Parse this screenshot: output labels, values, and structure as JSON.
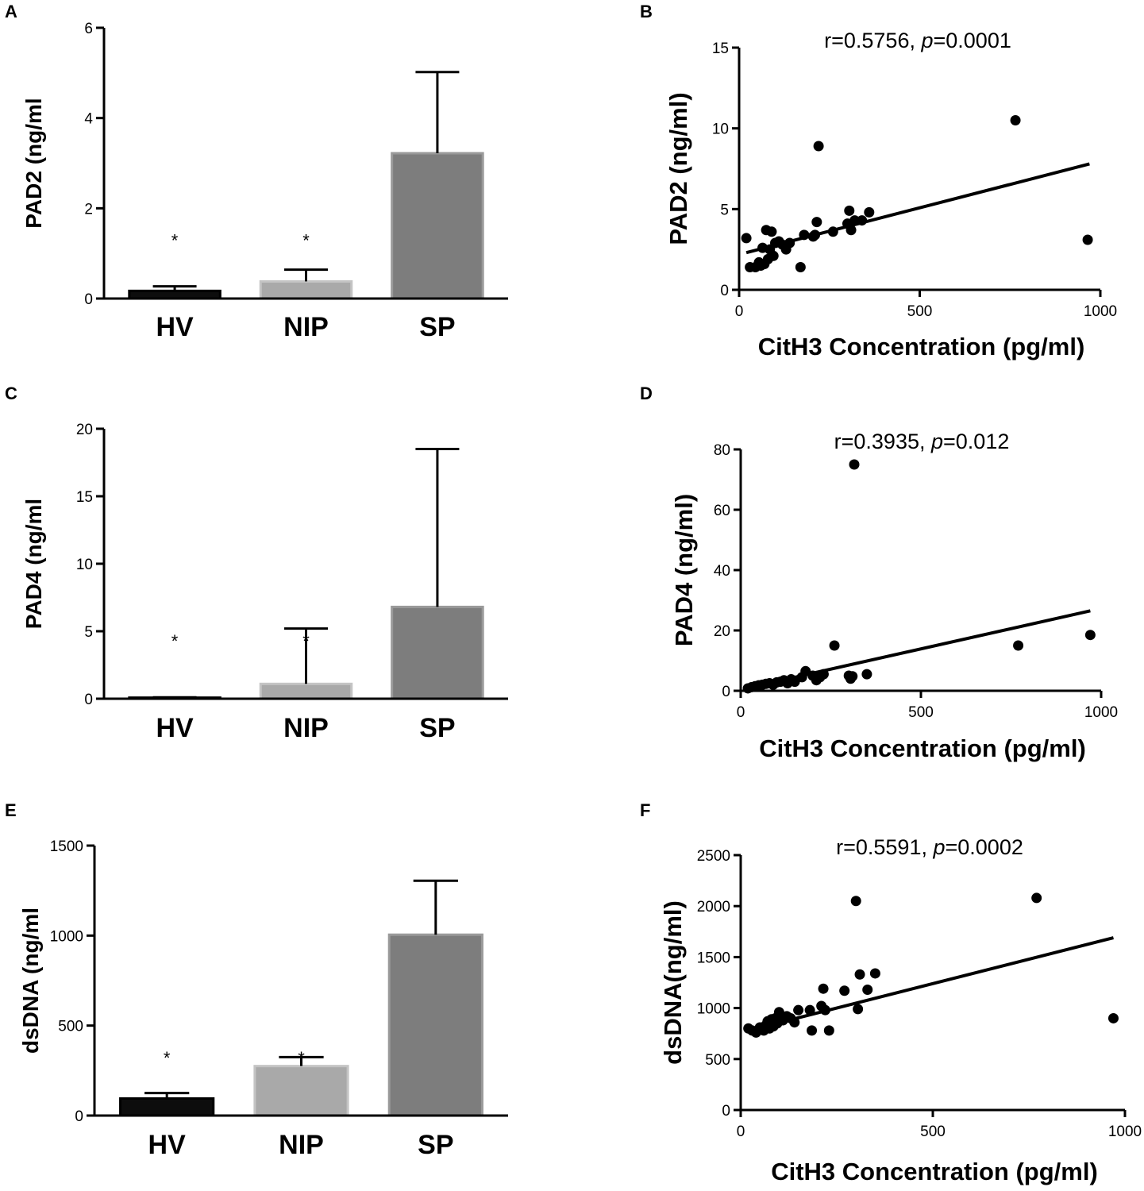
{
  "colors": {
    "HV": "#0d0d0d",
    "NIP": "#a9a9a9",
    "SP": "#7d7d7d",
    "edge_HV": "#000000",
    "edge_NIP": "#c4c4c4",
    "edge_SP": "#9a9a9a",
    "points": "#000000"
  },
  "chart_data": [
    {
      "panel": "A",
      "type": "bar",
      "categories": [
        "HV",
        "NIP",
        "SP"
      ],
      "values": [
        0.17,
        0.38,
        3.22
      ],
      "errors": [
        0.1,
        0.26,
        1.8
      ],
      "significance": [
        "*",
        "*",
        ""
      ],
      "ylabel": "PAD2 (ng/ml",
      "ylim": [
        0,
        6
      ],
      "yticks": [
        0,
        2,
        4,
        6
      ]
    },
    {
      "panel": "B",
      "type": "scatter",
      "annotation": {
        "r": "r=0.5756, ",
        "p_symbol": "p",
        "p_value": "=0.0001"
      },
      "xlabel": "CitH3 Concentration (pg/ml)",
      "ylabel": "PAD2 (ng/ml)",
      "xlim": [
        0,
        1000
      ],
      "ylim": [
        0,
        15
      ],
      "xticks": [
        0,
        500,
        1000
      ],
      "yticks": [
        0,
        5,
        10,
        15
      ],
      "fit_line": [
        [
          20,
          2.3
        ],
        [
          970,
          7.8
        ]
      ],
      "points": [
        [
          20,
          3.2
        ],
        [
          30,
          1.4
        ],
        [
          45,
          1.4
        ],
        [
          55,
          1.7
        ],
        [
          60,
          1.5
        ],
        [
          65,
          2.6
        ],
        [
          70,
          1.6
        ],
        [
          75,
          3.7
        ],
        [
          80,
          1.9
        ],
        [
          85,
          2.5
        ],
        [
          90,
          3.6
        ],
        [
          95,
          2.1
        ],
        [
          100,
          2.9
        ],
        [
          110,
          3.0
        ],
        [
          120,
          2.8
        ],
        [
          130,
          2.5
        ],
        [
          140,
          2.9
        ],
        [
          170,
          1.4
        ],
        [
          180,
          3.4
        ],
        [
          205,
          3.3
        ],
        [
          210,
          3.4
        ],
        [
          215,
          4.2
        ],
        [
          220,
          8.9
        ],
        [
          260,
          3.6
        ],
        [
          300,
          4.1
        ],
        [
          305,
          4.9
        ],
        [
          310,
          3.7
        ],
        [
          320,
          4.3
        ],
        [
          340,
          4.3
        ],
        [
          360,
          4.8
        ],
        [
          765,
          10.5
        ],
        [
          965,
          3.1
        ]
      ]
    },
    {
      "panel": "C",
      "type": "bar",
      "categories": [
        "HV",
        "NIP",
        "SP"
      ],
      "values": [
        0.08,
        1.1,
        6.8
      ],
      "errors": [
        0.02,
        4.1,
        11.7
      ],
      "significance": [
        "*",
        "*",
        ""
      ],
      "ylabel": "PAD4 (ng/ml",
      "ylim": [
        0,
        20
      ],
      "yticks": [
        0,
        5,
        10,
        15,
        20
      ]
    },
    {
      "panel": "D",
      "type": "scatter",
      "annotation": {
        "r": "r=0.3935, ",
        "p_symbol": "p",
        "p_value": "=0.012"
      },
      "xlabel": "CitH3 Concentration (pg/ml)",
      "ylabel": "PAD4 (ng/ml)",
      "xlim": [
        0,
        1000
      ],
      "ylim": [
        0,
        80
      ],
      "xticks": [
        0,
        500,
        1000
      ],
      "yticks": [
        0,
        20,
        40,
        60,
        80
      ],
      "fit_line": [
        [
          20,
          1.0
        ],
        [
          970,
          26.5
        ]
      ],
      "points": [
        [
          20,
          0.8
        ],
        [
          30,
          1.2
        ],
        [
          40,
          1.5
        ],
        [
          50,
          1.8
        ],
        [
          60,
          2.0
        ],
        [
          70,
          2.3
        ],
        [
          80,
          2.5
        ],
        [
          90,
          2.0
        ],
        [
          100,
          2.8
        ],
        [
          110,
          3.0
        ],
        [
          120,
          3.5
        ],
        [
          130,
          2.5
        ],
        [
          140,
          3.8
        ],
        [
          150,
          3.0
        ],
        [
          170,
          4.5
        ],
        [
          180,
          6.5
        ],
        [
          200,
          5.0
        ],
        [
          210,
          3.5
        ],
        [
          220,
          4.5
        ],
        [
          230,
          5.5
        ],
        [
          260,
          15.0
        ],
        [
          300,
          5.0
        ],
        [
          305,
          4.0
        ],
        [
          310,
          4.8
        ],
        [
          315,
          75.0
        ],
        [
          350,
          5.5
        ],
        [
          770,
          15.0
        ],
        [
          970,
          18.5
        ]
      ]
    },
    {
      "panel": "E",
      "type": "bar",
      "categories": [
        "HV",
        "NIP",
        "SP"
      ],
      "values": [
        95,
        275,
        1005
      ],
      "errors": [
        30,
        50,
        300
      ],
      "significance": [
        "*",
        "*",
        ""
      ],
      "ylabel": "dsDNA (ng/ml",
      "ylim": [
        0,
        1500
      ],
      "yticks": [
        0,
        500,
        1000,
        1500
      ]
    },
    {
      "panel": "F",
      "type": "scatter",
      "annotation": {
        "r": "r=0.5591, ",
        "p_symbol": "p",
        "p_value": "=0.0002"
      },
      "xlabel": "CitH3 Concentration (pg/ml)",
      "ylabel": "dsDNA(ng/ml)",
      "xlim": [
        0,
        1000
      ],
      "ylim": [
        0,
        2500
      ],
      "xticks": [
        0,
        500,
        1000
      ],
      "yticks": [
        0,
        500,
        1000,
        1500,
        2000,
        2500
      ],
      "fit_line": [
        [
          20,
          780
        ],
        [
          970,
          1690
        ]
      ],
      "points": [
        [
          20,
          800
        ],
        [
          30,
          780
        ],
        [
          40,
          760
        ],
        [
          50,
          810
        ],
        [
          55,
          790
        ],
        [
          60,
          780
        ],
        [
          65,
          830
        ],
        [
          70,
          870
        ],
        [
          75,
          800
        ],
        [
          80,
          890
        ],
        [
          85,
          820
        ],
        [
          90,
          900
        ],
        [
          95,
          850
        ],
        [
          100,
          960
        ],
        [
          110,
          880
        ],
        [
          120,
          920
        ],
        [
          130,
          900
        ],
        [
          140,
          860
        ],
        [
          150,
          980
        ],
        [
          180,
          980
        ],
        [
          185,
          780
        ],
        [
          210,
          1020
        ],
        [
          215,
          1190
        ],
        [
          220,
          980
        ],
        [
          230,
          780
        ],
        [
          270,
          1170
        ],
        [
          300,
          2050
        ],
        [
          305,
          990
        ],
        [
          310,
          1330
        ],
        [
          330,
          1180
        ],
        [
          350,
          1340
        ],
        [
          770,
          2080
        ],
        [
          970,
          900
        ]
      ]
    }
  ]
}
